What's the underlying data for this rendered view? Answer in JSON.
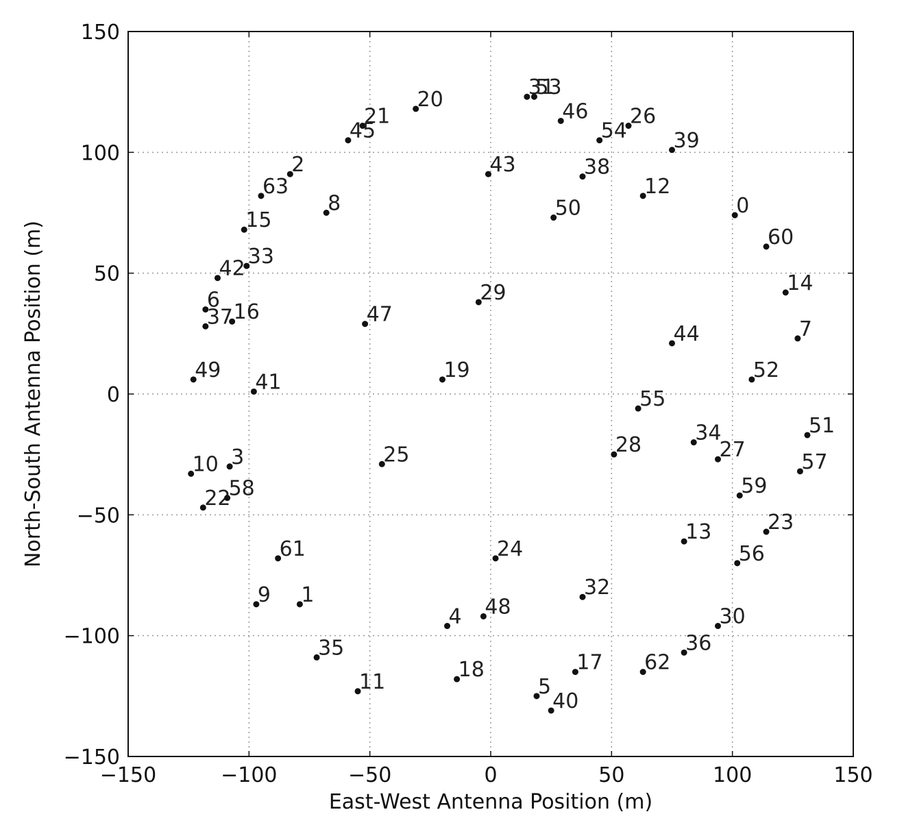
{
  "chart_data": {
    "type": "scatter",
    "title": "",
    "xlabel": "East-West Antenna Position (m)",
    "ylabel": "North-South Antenna Position (m)",
    "xlim": [
      -150,
      150
    ],
    "ylim": [
      -150,
      150
    ],
    "xticks": [
      -150,
      -100,
      -50,
      0,
      50,
      100,
      150
    ],
    "yticks": [
      -150,
      -100,
      -50,
      0,
      50,
      100,
      150
    ],
    "xtick_labels": [
      "−150",
      "−100",
      "−50",
      "0",
      "50",
      "100",
      "150"
    ],
    "ytick_labels": [
      "−150",
      "−100",
      "−50",
      "0",
      "50",
      "100",
      "150"
    ],
    "grid": true,
    "marker_color": "#111111",
    "points": [
      {
        "label": "0",
        "x": 101,
        "y": 74
      },
      {
        "label": "1",
        "x": -79,
        "y": -87
      },
      {
        "label": "2",
        "x": -83,
        "y": 91
      },
      {
        "label": "3",
        "x": -108,
        "y": -30
      },
      {
        "label": "4",
        "x": -18,
        "y": -96
      },
      {
        "label": "5",
        "x": 19,
        "y": -125
      },
      {
        "label": "6",
        "x": -118,
        "y": 35
      },
      {
        "label": "7",
        "x": 127,
        "y": 23
      },
      {
        "label": "8",
        "x": -68,
        "y": 75
      },
      {
        "label": "9",
        "x": -97,
        "y": -87
      },
      {
        "label": "10",
        "x": -124,
        "y": -33
      },
      {
        "label": "11",
        "x": -55,
        "y": -123
      },
      {
        "label": "12",
        "x": 63,
        "y": 82
      },
      {
        "label": "13",
        "x": 80,
        "y": -61
      },
      {
        "label": "14",
        "x": 122,
        "y": 42
      },
      {
        "label": "15",
        "x": -102,
        "y": 68
      },
      {
        "label": "16",
        "x": -107,
        "y": 30
      },
      {
        "label": "17",
        "x": 35,
        "y": -115
      },
      {
        "label": "18",
        "x": -14,
        "y": -118
      },
      {
        "label": "19",
        "x": -20,
        "y": 6
      },
      {
        "label": "20",
        "x": -31,
        "y": 118
      },
      {
        "label": "21",
        "x": -53,
        "y": 111
      },
      {
        "label": "22",
        "x": -119,
        "y": -47
      },
      {
        "label": "23",
        "x": 114,
        "y": -57
      },
      {
        "label": "24",
        "x": 2,
        "y": -68
      },
      {
        "label": "25",
        "x": -45,
        "y": -29
      },
      {
        "label": "26",
        "x": 57,
        "y": 111
      },
      {
        "label": "27",
        "x": 94,
        "y": -27
      },
      {
        "label": "28",
        "x": 51,
        "y": -25
      },
      {
        "label": "29",
        "x": -5,
        "y": 38
      },
      {
        "label": "30",
        "x": 94,
        "y": -96
      },
      {
        "label": "31",
        "x": 15,
        "y": 123
      },
      {
        "label": "32",
        "x": 38,
        "y": -84
      },
      {
        "label": "33",
        "x": -101,
        "y": 53
      },
      {
        "label": "34",
        "x": 84,
        "y": -20
      },
      {
        "label": "35",
        "x": -72,
        "y": -109
      },
      {
        "label": "36",
        "x": 80,
        "y": -107
      },
      {
        "label": "37",
        "x": -118,
        "y": 28
      },
      {
        "label": "38",
        "x": 38,
        "y": 90
      },
      {
        "label": "39",
        "x": 75,
        "y": 101
      },
      {
        "label": "40",
        "x": 25,
        "y": -131
      },
      {
        "label": "41",
        "x": -98,
        "y": 1
      },
      {
        "label": "42",
        "x": -113,
        "y": 48
      },
      {
        "label": "43",
        "x": -1,
        "y": 91
      },
      {
        "label": "44",
        "x": 75,
        "y": 21
      },
      {
        "label": "45",
        "x": -59,
        "y": 105
      },
      {
        "label": "46",
        "x": 29,
        "y": 113
      },
      {
        "label": "47",
        "x": -52,
        "y": 29
      },
      {
        "label": "48",
        "x": -3,
        "y": -92
      },
      {
        "label": "49",
        "x": -123,
        "y": 6
      },
      {
        "label": "50",
        "x": 26,
        "y": 73
      },
      {
        "label": "51",
        "x": 131,
        "y": -17
      },
      {
        "label": "52",
        "x": 108,
        "y": 6
      },
      {
        "label": "53",
        "x": 18,
        "y": 123
      },
      {
        "label": "54",
        "x": 45,
        "y": 105
      },
      {
        "label": "55",
        "x": 61,
        "y": -6
      },
      {
        "label": "56",
        "x": 102,
        "y": -70
      },
      {
        "label": "57",
        "x": 128,
        "y": -32
      },
      {
        "label": "58",
        "x": -109,
        "y": -43
      },
      {
        "label": "59",
        "x": 103,
        "y": -42
      },
      {
        "label": "60",
        "x": 114,
        "y": 61
      },
      {
        "label": "61",
        "x": -88,
        "y": -68
      },
      {
        "label": "62",
        "x": 63,
        "y": -115
      },
      {
        "label": "63",
        "x": -95,
        "y": 82
      }
    ]
  }
}
